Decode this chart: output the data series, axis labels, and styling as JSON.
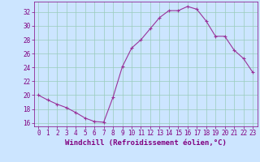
{
  "x": [
    0,
    1,
    2,
    3,
    4,
    5,
    6,
    7,
    8,
    9,
    10,
    11,
    12,
    13,
    14,
    15,
    16,
    17,
    18,
    19,
    20,
    21,
    22,
    23
  ],
  "y": [
    20.0,
    19.3,
    18.7,
    18.2,
    17.5,
    16.7,
    16.2,
    16.1,
    19.7,
    24.1,
    26.8,
    28.0,
    29.6,
    31.2,
    32.2,
    32.2,
    32.8,
    32.4,
    30.7,
    28.5,
    28.5,
    26.5,
    25.3,
    23.3
  ],
  "line_color": "#993399",
  "marker": "+",
  "bg_color": "#cce5ff",
  "grid_color": "#99ccbb",
  "xlabel": "Windchill (Refroidissement éolien,°C)",
  "ylim": [
    15.5,
    33.5
  ],
  "xlim": [
    -0.5,
    23.5
  ],
  "yticks": [
    16,
    18,
    20,
    22,
    24,
    26,
    28,
    30,
    32
  ],
  "xticks": [
    0,
    1,
    2,
    3,
    4,
    5,
    6,
    7,
    8,
    9,
    10,
    11,
    12,
    13,
    14,
    15,
    16,
    17,
    18,
    19,
    20,
    21,
    22,
    23
  ],
  "label_color": "#800080",
  "tick_label_fontsize": 5.5,
  "xlabel_fontsize": 6.5
}
